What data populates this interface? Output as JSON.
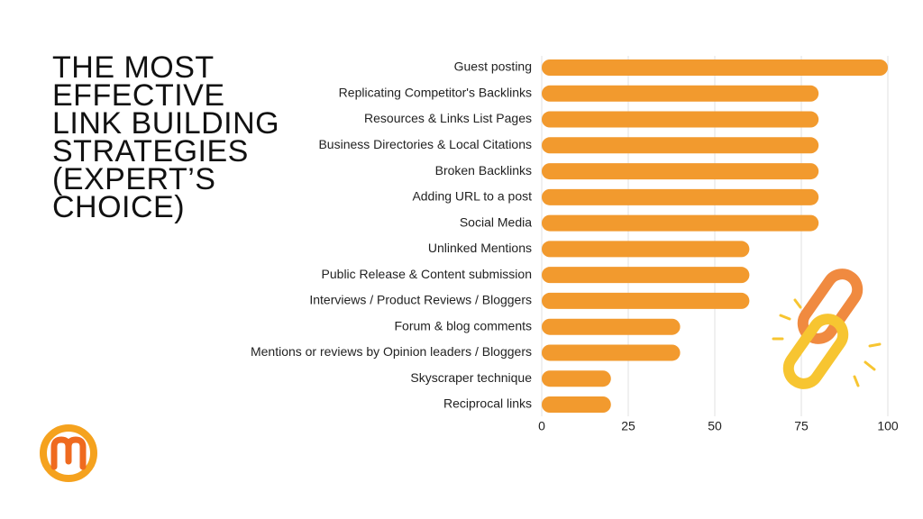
{
  "chart_data": {
    "type": "barh",
    "title": "THE MOST EFFECTIVE LINK BUILDING STRATEGIES (EXPERT’S CHOICE)",
    "categories": [
      "Guest posting",
      "Replicating Competitor's Backlinks",
      "Resources & Links List Pages",
      "Business Directories & Local Citations",
      "Broken Backlinks",
      "Adding URL to a post",
      "Social Media",
      "Unlinked Mentions",
      "Public Release & Content submission",
      "Interviews / Product Reviews / Bloggers",
      "Forum & blog comments",
      "Mentions or reviews by Opinion leaders / Bloggers",
      "Skyscraper technique",
      "Reciprocal links"
    ],
    "values": [
      100,
      80,
      80,
      80,
      80,
      80,
      80,
      60,
      60,
      60,
      40,
      40,
      20,
      20
    ],
    "color": "#f29a2e",
    "xlim": [
      0,
      100
    ],
    "xticks": [
      0,
      25,
      50,
      75,
      100
    ],
    "grid": true
  }
}
